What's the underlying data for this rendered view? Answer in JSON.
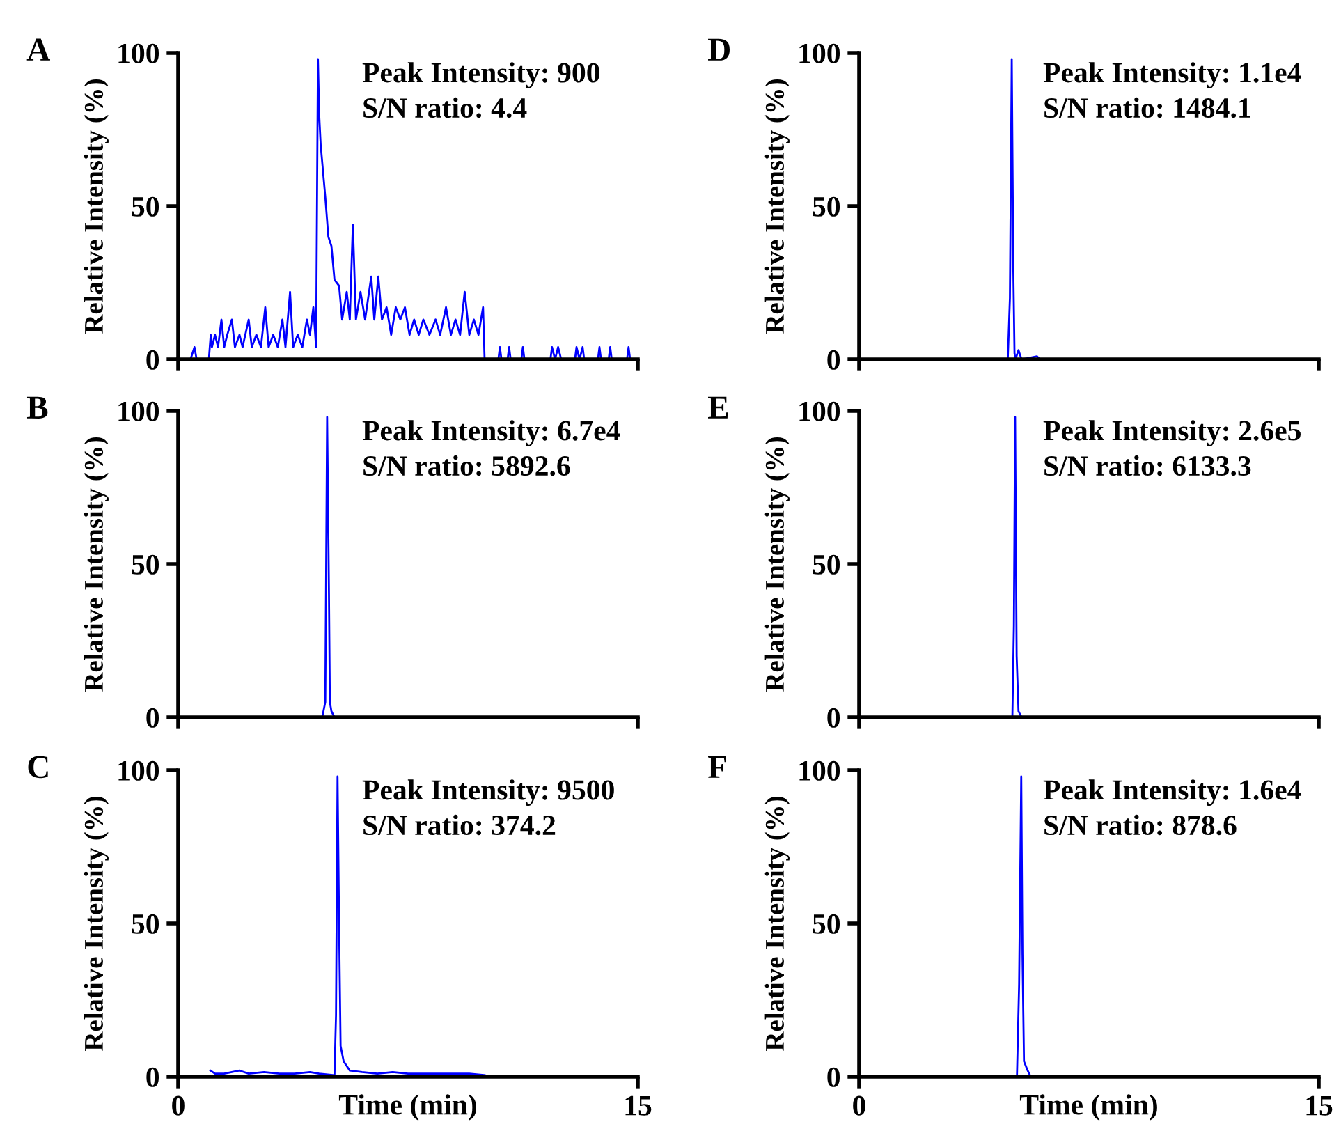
{
  "chart_data": [
    {
      "type": "line",
      "title": "A",
      "ylabel": "Relative Intensity (%)",
      "annotations": [
        "Peak Intensity: 900",
        "S/N ratio: 4.4"
      ],
      "xlim": [
        0,
        15
      ],
      "xticks": [
        0,
        15
      ],
      "ylim": [
        0,
        100
      ],
      "yticks": [
        0,
        50,
        100
      ],
      "tick_labels": "y",
      "series": [
        {
          "color": "#0000ff",
          "x": [
            0.4,
            0.53,
            0.6,
            1.0,
            1.06,
            1.1,
            1.2,
            1.3,
            1.41,
            1.5,
            1.6,
            1.75,
            1.85,
            2.0,
            2.1,
            2.3,
            2.4,
            2.55,
            2.7,
            2.84,
            2.95,
            3.1,
            3.25,
            3.4,
            3.5,
            3.65,
            3.75,
            3.9,
            4.05,
            4.2,
            4.3,
            4.41,
            4.5,
            4.56,
            4.6,
            4.65,
            4.72,
            4.8,
            4.9,
            5.0,
            5.1,
            5.25,
            5.35,
            5.5,
            5.6,
            5.7,
            5.8,
            5.95,
            6.1,
            6.3,
            6.4,
            6.53,
            6.65,
            6.8,
            6.95,
            7.1,
            7.25,
            7.4,
            7.55,
            7.7,
            7.85,
            8.0,
            8.2,
            8.4,
            8.55,
            8.74,
            8.9,
            9.05,
            9.2,
            9.35,
            9.5,
            9.65,
            9.8,
            9.95,
            10.0,
            10.45,
            10.5,
            10.55,
            10.75,
            10.8,
            10.85,
            11.2,
            11.25,
            11.3,
            12.15,
            12.2,
            12.3,
            12.4,
            12.5,
            12.95,
            13.0,
            13.1,
            13.2,
            13.25,
            13.7,
            13.75,
            13.8,
            14.05,
            14.1,
            14.15,
            14.65,
            14.7,
            14.75
          ],
          "values": [
            0,
            4,
            0,
            0,
            8,
            4,
            8,
            4,
            13,
            4,
            8,
            13,
            4,
            8,
            4,
            13,
            4,
            8,
            4,
            17,
            4,
            8,
            4,
            13,
            4,
            22,
            4,
            8,
            4,
            13,
            8,
            17,
            4,
            98,
            80,
            70,
            62,
            53,
            40,
            37,
            26,
            24,
            13,
            22,
            13,
            44,
            13,
            22,
            13,
            27,
            13,
            27,
            13,
            17,
            8,
            17,
            13,
            17,
            8,
            13,
            8,
            13,
            8,
            13,
            8,
            17,
            8,
            13,
            8,
            22,
            8,
            13,
            8,
            17,
            0,
            0,
            4,
            0,
            0,
            4,
            0,
            0,
            4,
            0,
            0,
            4,
            0,
            4,
            0,
            0,
            4,
            0,
            4,
            0,
            0,
            4,
            0,
            0,
            4,
            0,
            0,
            4,
            0
          ]
        }
      ]
    },
    {
      "type": "line",
      "title": "B",
      "ylabel": "Relative Intensity (%)",
      "annotations": [
        "Peak Intensity: 6.7e4",
        "S/N ratio: 5892.6"
      ],
      "xlim": [
        0,
        15
      ],
      "xticks": [
        0,
        15
      ],
      "ylim": [
        0,
        100
      ],
      "yticks": [
        0,
        50,
        100
      ],
      "tick_labels": "y",
      "series": [
        {
          "color": "#0000ff",
          "x": [
            4.7,
            4.8,
            4.86,
            4.92,
            4.95,
            5.0,
            5.1
          ],
          "values": [
            0,
            5,
            98,
            40,
            5,
            2,
            0
          ]
        }
      ]
    },
    {
      "type": "line",
      "title": "C",
      "xlabel": "Time (min)",
      "ylabel": "Relative Intensity (%)",
      "annotations": [
        "Peak Intensity: 9500",
        "S/N ratio: 374.2"
      ],
      "xlim": [
        0,
        15
      ],
      "xticks": [
        0,
        15
      ],
      "ylim": [
        0,
        100
      ],
      "yticks": [
        0,
        50,
        100
      ],
      "series": [
        {
          "color": "#0000ff",
          "x": [
            1.05,
            1.2,
            1.5,
            2.0,
            2.3,
            2.8,
            3.3,
            3.8,
            4.3,
            4.6,
            5.1,
            5.15,
            5.2,
            5.25,
            5.3,
            5.4,
            5.6,
            6.0,
            6.5,
            7.0,
            7.5,
            8.0,
            8.5,
            9.0,
            9.5,
            10.0
          ],
          "values": [
            2,
            1,
            1,
            2,
            1,
            1.5,
            1,
            1,
            1.5,
            1,
            0.5,
            20,
            98,
            50,
            10,
            5,
            2,
            1.5,
            1,
            1.5,
            1,
            1,
            1,
            1,
            1,
            0.5
          ]
        }
      ]
    },
    {
      "type": "line",
      "title": "D",
      "ylabel": "Relative Intensity (%)",
      "annotations": [
        "Peak Intensity: 1.1e4",
        "S/N ratio: 1484.1"
      ],
      "xlim": [
        0,
        15
      ],
      "xticks": [
        0,
        15
      ],
      "ylim": [
        0,
        100
      ],
      "yticks": [
        0,
        50,
        100
      ],
      "tick_labels": "y",
      "series": [
        {
          "color": "#0000ff",
          "x": [
            4.85,
            4.92,
            4.98,
            5.03,
            5.07,
            5.1,
            5.2,
            5.3,
            5.8,
            5.9
          ],
          "values": [
            0,
            20,
            98,
            30,
            2,
            0,
            3,
            0,
            1,
            0
          ]
        }
      ]
    },
    {
      "type": "line",
      "title": "E",
      "ylabel": "Relative Intensity (%)",
      "annotations": [
        "Peak Intensity: 2.6e5",
        "S/N ratio: 6133.3"
      ],
      "xlim": [
        0,
        15
      ],
      "xticks": [
        0,
        15
      ],
      "ylim": [
        0,
        100
      ],
      "yticks": [
        0,
        50,
        100
      ],
      "tick_labels": "y",
      "series": [
        {
          "color": "#0000ff",
          "x": [
            5.0,
            5.05,
            5.09,
            5.14,
            5.2,
            5.3
          ],
          "values": [
            0,
            30,
            98,
            20,
            2,
            0
          ]
        }
      ]
    },
    {
      "type": "line",
      "title": "F",
      "xlabel": "Time (min)",
      "ylabel": "Relative Intensity (%)",
      "annotations": [
        "Peak Intensity: 1.6e4",
        "S/N ratio: 878.6"
      ],
      "xlim": [
        0,
        15
      ],
      "xticks": [
        0,
        15
      ],
      "ylim": [
        0,
        100
      ],
      "yticks": [
        0,
        50,
        100
      ],
      "series": [
        {
          "color": "#0000ff",
          "x": [
            1.0,
            5.15,
            5.22,
            5.29,
            5.33,
            5.38,
            5.5,
            5.6,
            10.0
          ],
          "values": [
            0,
            0,
            30,
            98,
            40,
            5,
            2,
            0,
            0
          ]
        }
      ]
    }
  ]
}
